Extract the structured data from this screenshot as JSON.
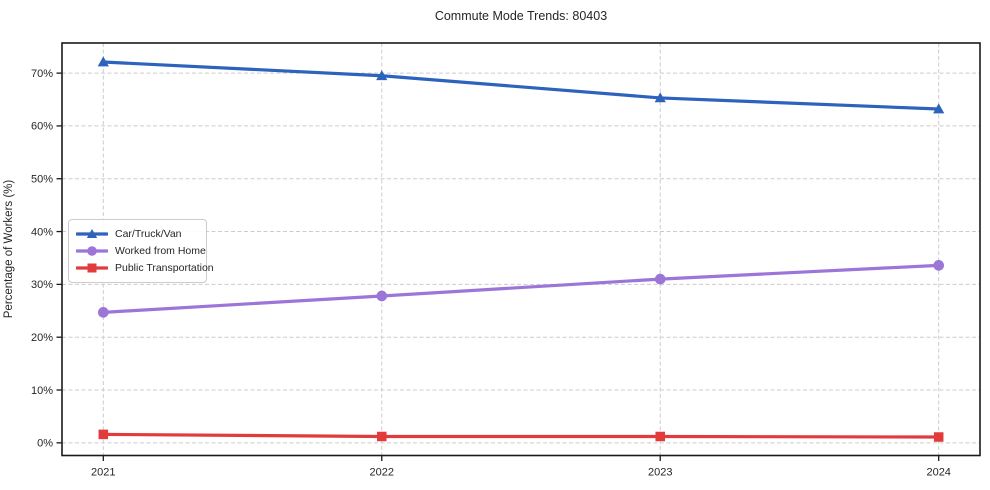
{
  "title": "Commute Mode Trends: 80403",
  "chart_data": {
    "type": "line",
    "title": "Commute Mode Trends: 80403",
    "xlabel": "",
    "ylabel": "Percentage of Workers (%)",
    "categories": [
      "2021",
      "2022",
      "2023",
      "2024"
    ],
    "series": [
      {
        "name": "Car/Truck/Van",
        "color": "#2d62bd",
        "marker": "triangle",
        "values": [
          72.1,
          69.5,
          65.3,
          63.2
        ]
      },
      {
        "name": "Worked from Home",
        "color": "#9b75d8",
        "marker": "circle",
        "values": [
          24.7,
          27.8,
          31.0,
          33.6
        ]
      },
      {
        "name": "Public Transportation",
        "color": "#e23b3b",
        "marker": "square",
        "values": [
          1.6,
          1.2,
          1.2,
          1.1
        ]
      }
    ],
    "y_ticks": [
      "0%",
      "10%",
      "20%",
      "30%",
      "40%",
      "50%",
      "60%",
      "70%"
    ],
    "y_tick_values": [
      0,
      10,
      20,
      30,
      40,
      50,
      60,
      70
    ],
    "ylim": [
      -2.4,
      75.7
    ],
    "grid": true,
    "grid_color": "#cccccc",
    "spine_color": "#1a1a1a",
    "tick_label_color": "#262626",
    "legend_position": "center-left"
  }
}
